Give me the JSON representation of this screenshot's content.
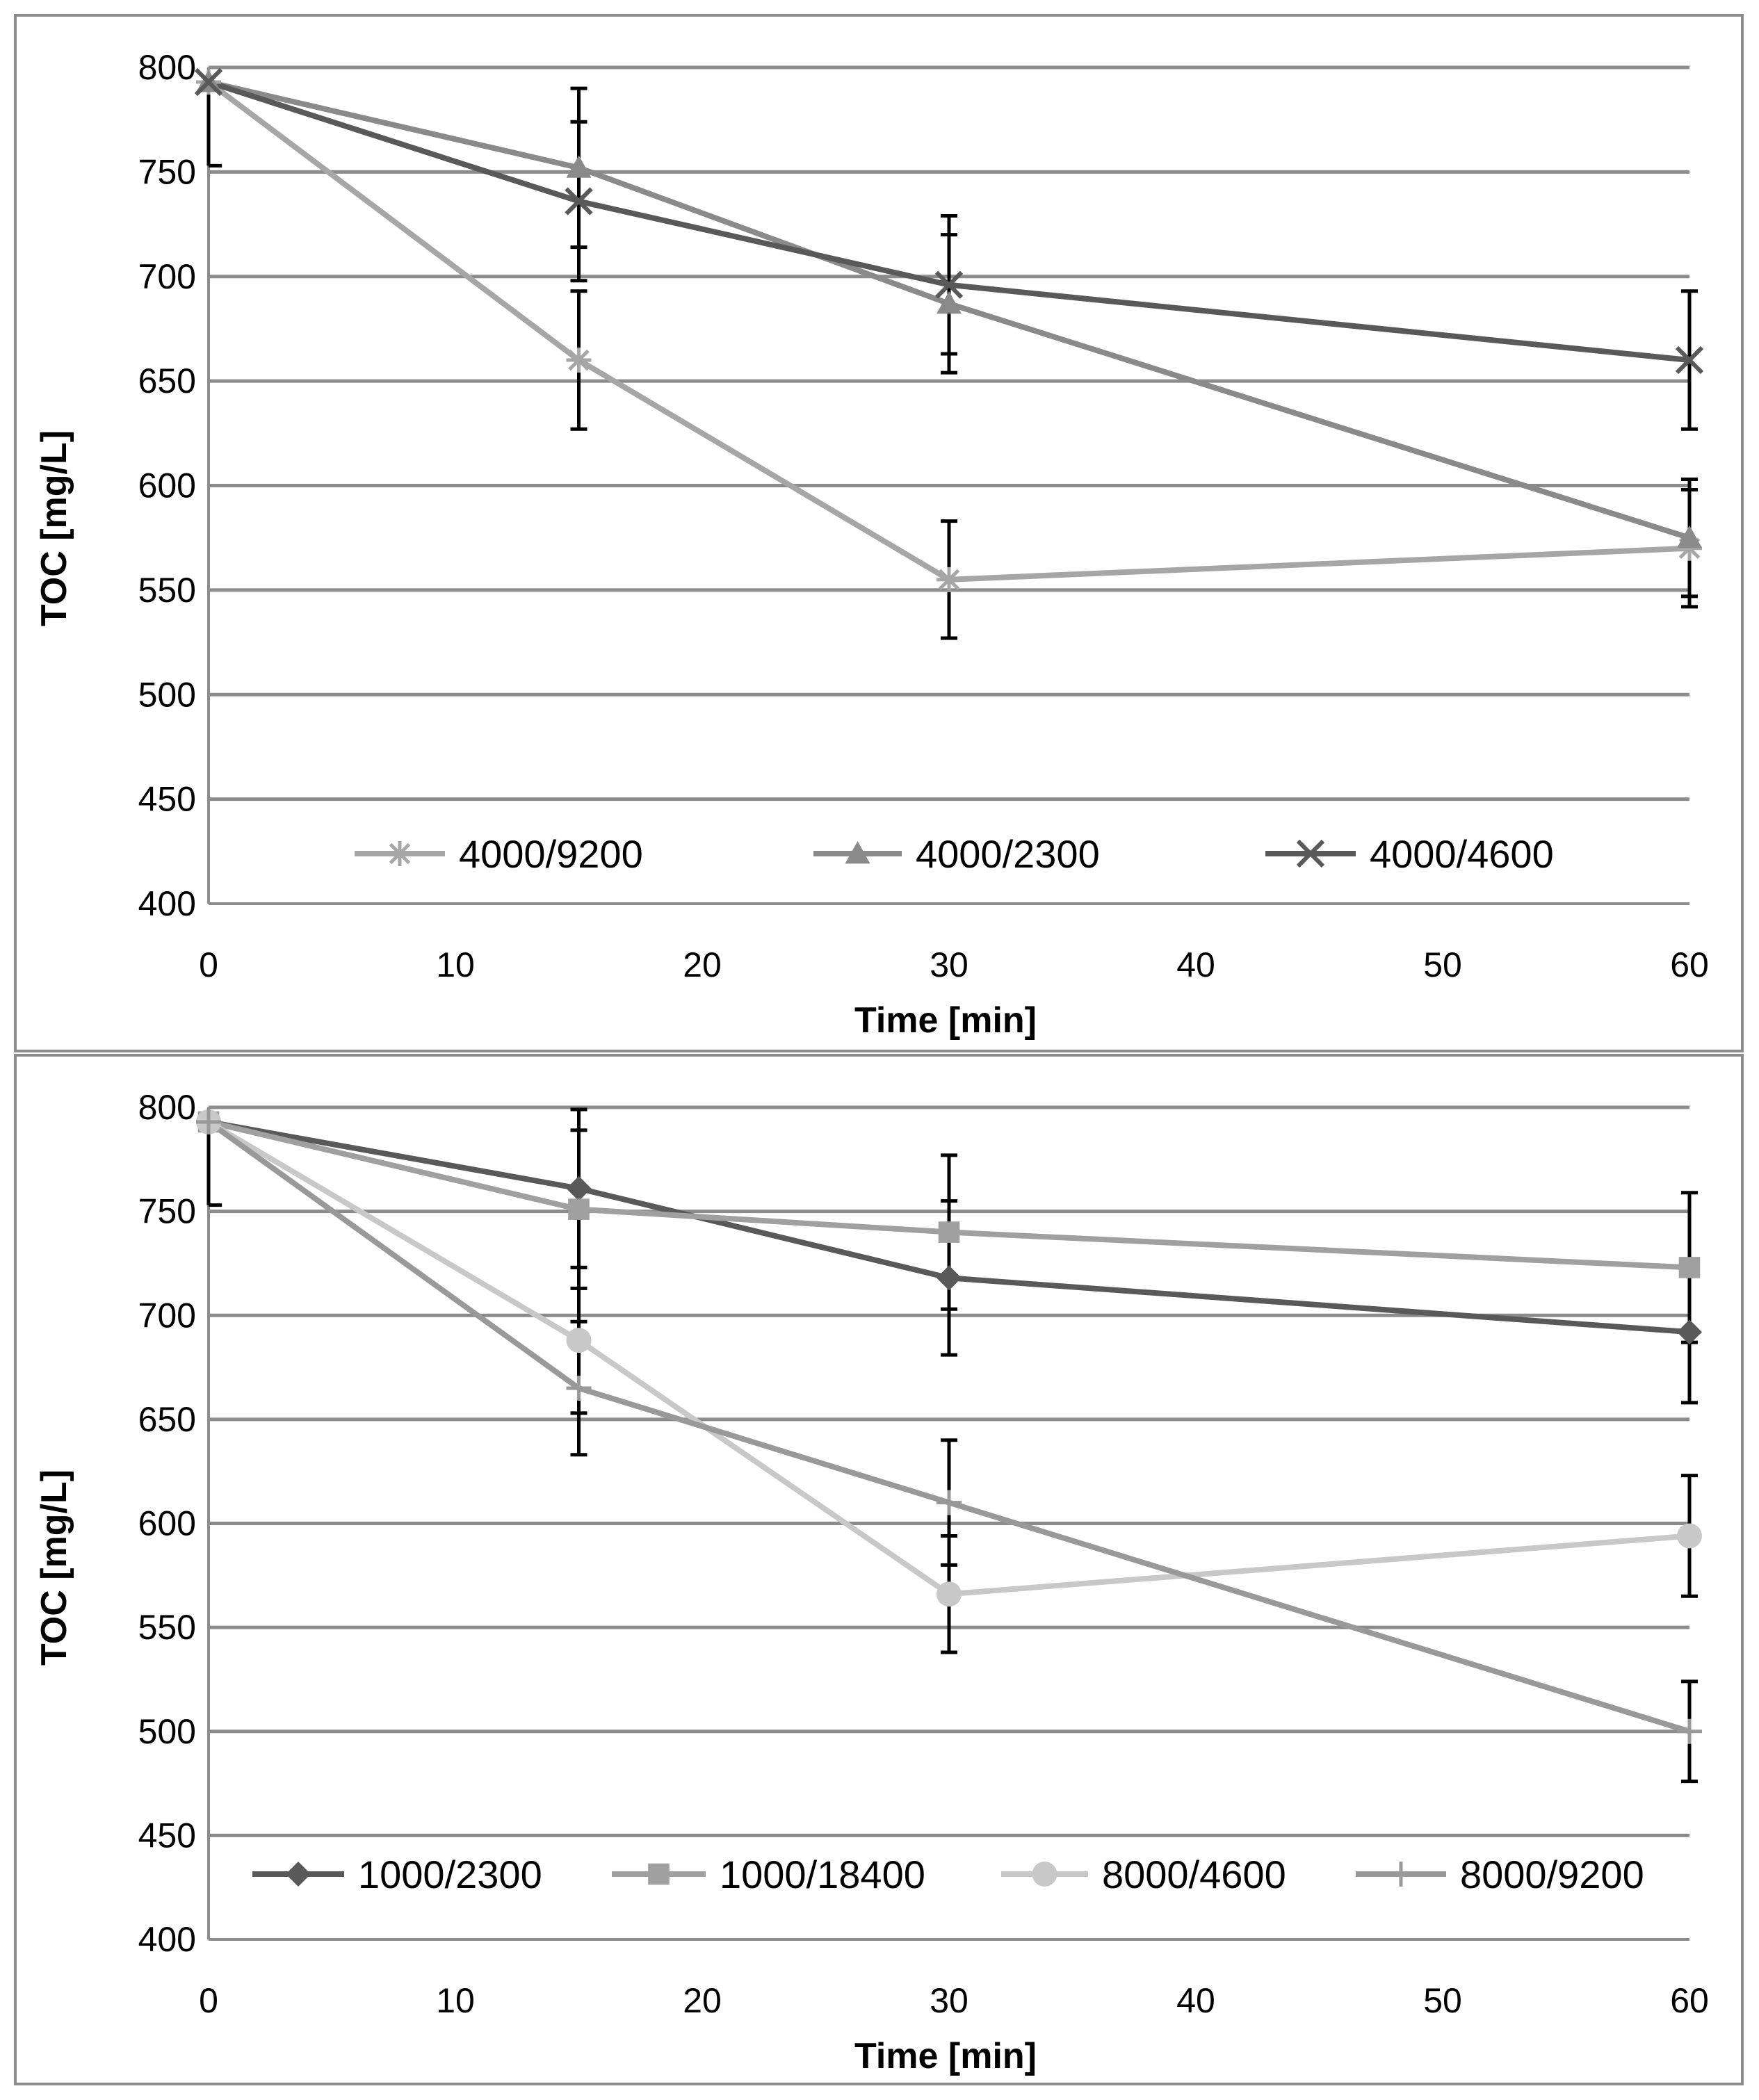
{
  "chart_data": [
    {
      "type": "line",
      "xlabel": "Time [min]",
      "ylabel": "TOC [mg/L]",
      "xlim": [
        0,
        60
      ],
      "ylim": [
        400,
        800
      ],
      "xticks": [
        0,
        10,
        20,
        30,
        40,
        50,
        60
      ],
      "yticks": [
        400,
        450,
        500,
        550,
        600,
        650,
        700,
        750,
        800
      ],
      "grid": true,
      "legend_position": "bottom-inside",
      "series": [
        {
          "name": "4000/9200",
          "marker": "asterisk",
          "color": "#a6a6a6",
          "x": [
            0,
            15,
            30,
            60
          ],
          "values": [
            793,
            660,
            555,
            570
          ],
          "errors": [
            0,
            33,
            28,
            28
          ]
        },
        {
          "name": "4000/2300",
          "marker": "triangle",
          "color": "#8a8a8a",
          "x": [
            0,
            15,
            30,
            60
          ],
          "values": [
            793,
            752,
            687,
            575
          ],
          "errors": [
            0,
            38,
            33,
            28
          ]
        },
        {
          "name": "4000/4600",
          "marker": "x",
          "color": "#595959",
          "x": [
            0,
            15,
            30,
            60
          ],
          "values": [
            793,
            736,
            696,
            660
          ],
          "errors": [
            40,
            38,
            33,
            33
          ]
        }
      ]
    },
    {
      "type": "line",
      "xlabel": "Time [min]",
      "ylabel": "TOC [mg/L]",
      "xlim": [
        0,
        60
      ],
      "ylim": [
        400,
        800
      ],
      "xticks": [
        0,
        10,
        20,
        30,
        40,
        50,
        60
      ],
      "yticks": [
        400,
        450,
        500,
        550,
        600,
        650,
        700,
        750,
        800
      ],
      "grid": true,
      "legend_position": "bottom-inside",
      "series": [
        {
          "name": "1000/2300",
          "marker": "diamond",
          "color": "#595959",
          "x": [
            0,
            15,
            30,
            60
          ],
          "values": [
            793,
            761,
            718,
            692
          ],
          "errors": [
            40,
            38,
            37,
            34
          ]
        },
        {
          "name": "1000/18400",
          "marker": "square",
          "color": "#a0a0a0",
          "x": [
            0,
            15,
            30,
            60
          ],
          "values": [
            793,
            751,
            740,
            723
          ],
          "errors": [
            0,
            38,
            37,
            36
          ]
        },
        {
          "name": "8000/4600",
          "marker": "circle",
          "color": "#c8c8c8",
          "x": [
            0,
            15,
            30,
            60
          ],
          "values": [
            793,
            688,
            566,
            594
          ],
          "errors": [
            0,
            35,
            28,
            29
          ]
        },
        {
          "name": "8000/9200",
          "marker": "plus",
          "color": "#999999",
          "x": [
            0,
            15,
            30,
            60
          ],
          "values": [
            793,
            665,
            610,
            500
          ],
          "errors": [
            0,
            32,
            30,
            24
          ]
        }
      ]
    }
  ]
}
